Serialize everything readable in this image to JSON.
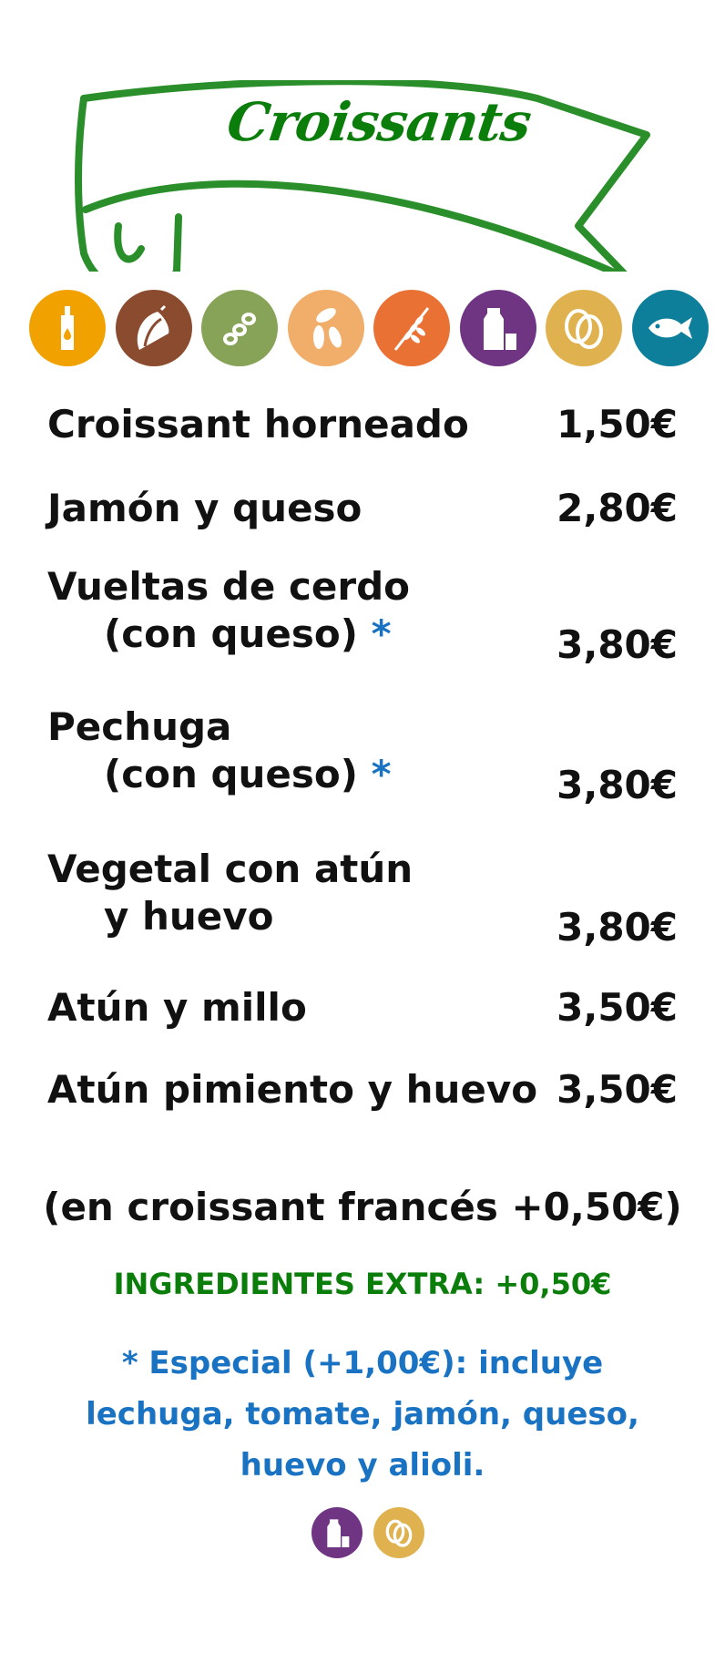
{
  "header": {
    "title": "Croissants"
  },
  "allergens": [
    {
      "icon": "mustard-icon",
      "color": "#f2a200"
    },
    {
      "icon": "nuts-icon",
      "color": "#8b4b2e"
    },
    {
      "icon": "soy-icon",
      "color": "#86a357"
    },
    {
      "icon": "sesame-icon",
      "color": "#f1ae6a"
    },
    {
      "icon": "gluten-icon",
      "color": "#ea7134"
    },
    {
      "icon": "milk-icon",
      "color": "#6f3583"
    },
    {
      "icon": "egg-icon",
      "color": "#e0b24f"
    },
    {
      "icon": "fish-icon",
      "color": "#0e7f9a"
    }
  ],
  "menu": {
    "items": [
      {
        "name": "Croissant horneado",
        "price": "1,50€"
      },
      {
        "name": "Jamón y queso",
        "price": "2,80€"
      },
      {
        "name": "Vueltas de cerdo",
        "sub": "(con queso)",
        "star": "*",
        "price": "3,80€"
      },
      {
        "name": "Pechuga",
        "sub": "(con queso)",
        "star": "*",
        "price": "3,80€"
      },
      {
        "name": "Vegetal con atún",
        "sub": "y huevo",
        "price": "3,80€"
      },
      {
        "name": "Atún y millo",
        "price": "3,50€"
      },
      {
        "name": "Atún pimiento y huevo",
        "price": "3,50€"
      }
    ]
  },
  "notes": {
    "french": "(en croissant francés +0,50€)",
    "extra": "INGREDIENTES EXTRA: +0,50€",
    "special_lines": [
      "* Especial (+1,00€): incluye",
      "lechuga, tomate, jamón, queso,",
      "huevo y alioli."
    ]
  },
  "colors": {
    "green": "#0b7d0b",
    "banner": "#2a8f2a",
    "blue": "#1a73c2",
    "text": "#111111"
  },
  "special_allergens": [
    {
      "icon": "milk-icon",
      "color": "#6f3583"
    },
    {
      "icon": "egg-icon",
      "color": "#e0b24f"
    }
  ]
}
